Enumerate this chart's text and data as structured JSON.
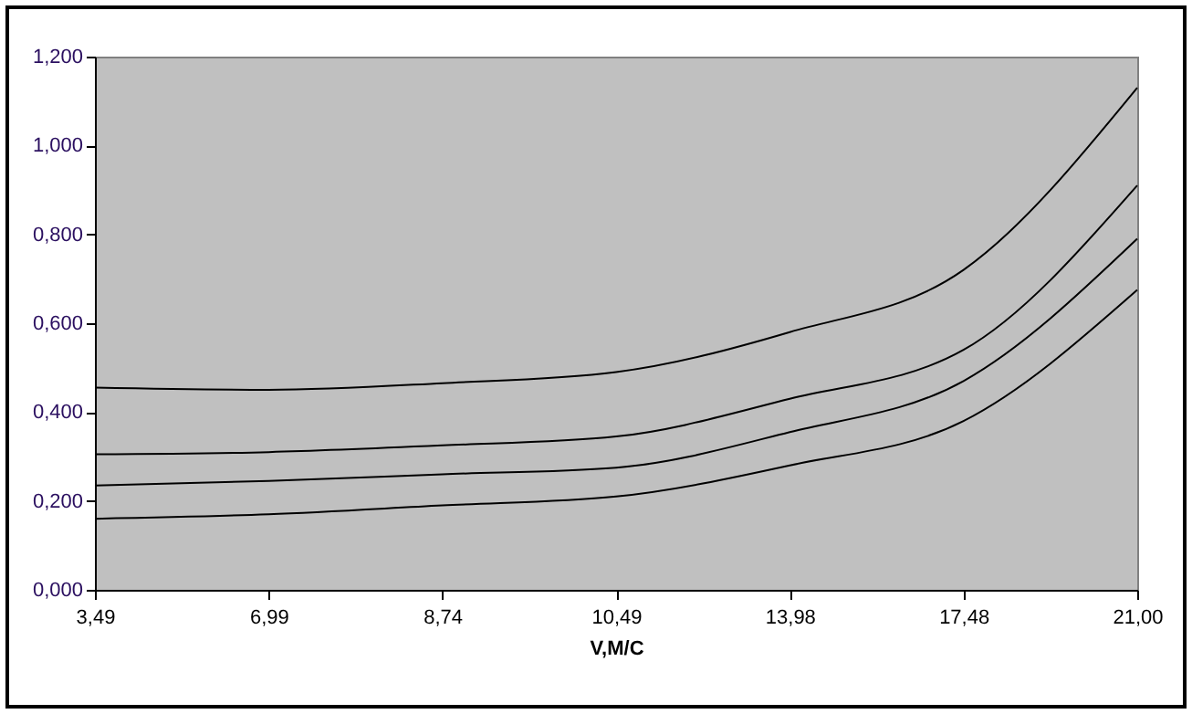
{
  "chart_data": {
    "type": "line",
    "xlabel": "V,M/C",
    "categories": [
      "3,49",
      "6,99",
      "8,74",
      "10,49",
      "13,98",
      "17,48",
      "21,00"
    ],
    "series": [
      {
        "color": "#000000",
        "values": [
          0.455,
          0.45,
          0.465,
          0.49,
          0.58,
          0.72,
          1.13
        ]
      },
      {
        "color": "#000000",
        "values": [
          0.305,
          0.31,
          0.325,
          0.345,
          0.43,
          0.54,
          0.91
        ]
      },
      {
        "color": "#000000",
        "values": [
          0.235,
          0.245,
          0.26,
          0.275,
          0.355,
          0.47,
          0.79
        ]
      },
      {
        "color": "#000000",
        "values": [
          0.16,
          0.17,
          0.19,
          0.21,
          0.28,
          0.38,
          0.675
        ]
      }
    ],
    "ylim": [
      0,
      1.2
    ],
    "yticks": [
      {
        "value": 0,
        "label": "0,000"
      },
      {
        "value": 0.2,
        "label": "0,200"
      },
      {
        "value": 0.4,
        "label": "0,400"
      },
      {
        "value": 0.6,
        "label": "0,600"
      },
      {
        "value": 0.8,
        "label": "0,800"
      },
      {
        "value": 1,
        "label": "1,000"
      },
      {
        "value": 1.2,
        "label": "1,200"
      }
    ],
    "grid": false,
    "legend": false,
    "marker": "none",
    "line_style": "solid"
  }
}
